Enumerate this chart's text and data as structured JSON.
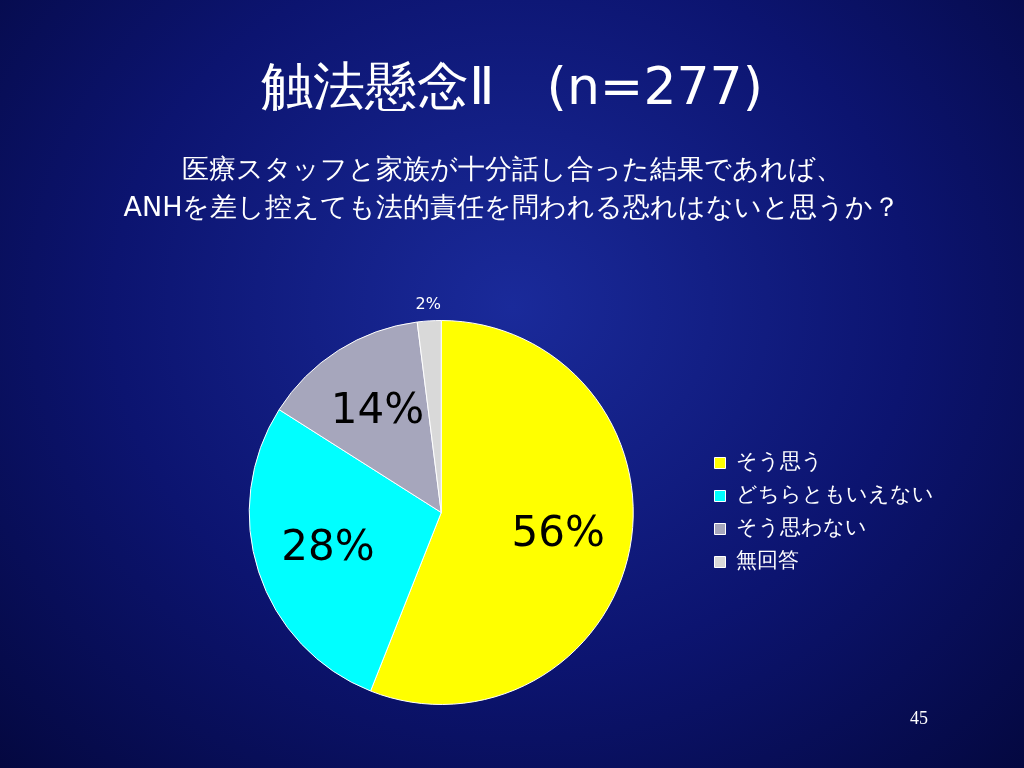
{
  "chart_data": {
    "type": "pie",
    "title": "触法懸念Ⅱ　(n=277)",
    "subtitle": "医療スタッフと家族が十分話し合った結果であれば、\nANHを差し控えても法的責任を問われる恐れはないと思うか？",
    "categories": [
      "そう思う",
      "どちらともいえない",
      "そう思わない",
      "無回答"
    ],
    "values": [
      56,
      28,
      14,
      2
    ],
    "colors": [
      "#ffff00",
      "#00ffff",
      "#a6a6bc",
      "#d9d9d9"
    ],
    "value_labels": [
      "56%",
      "28%",
      "14%",
      "2%"
    ],
    "legend": "right",
    "annotations": [
      "45"
    ]
  }
}
